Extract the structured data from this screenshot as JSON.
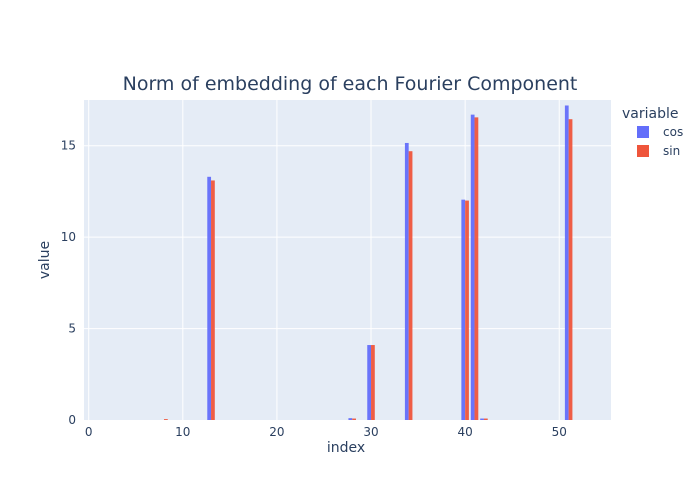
{
  "chart_data": {
    "type": "bar",
    "title": "Norm of embedding of each Fourier Component",
    "xlabel": "index",
    "ylabel": "value",
    "xlim": [
      -0.5,
      55.5
    ],
    "ylim": [
      0,
      17.5
    ],
    "xticks": [
      0,
      10,
      20,
      30,
      40,
      50
    ],
    "yticks": [
      0,
      5,
      10,
      15
    ],
    "grid": true,
    "legend": {
      "title": "variable",
      "placement": "right"
    },
    "barmode": "group",
    "series": [
      {
        "name": "cos",
        "color": "#636efa",
        "points": [
          [
            13,
            13.3
          ],
          [
            28,
            0.1
          ],
          [
            30,
            4.1
          ],
          [
            34,
            15.15
          ],
          [
            40,
            12.05
          ],
          [
            41,
            16.7
          ],
          [
            42,
            0.08
          ],
          [
            51,
            17.2
          ]
        ]
      },
      {
        "name": "sin",
        "color": "#ef553b",
        "points": [
          [
            8,
            0.05
          ],
          [
            13,
            13.1
          ],
          [
            28,
            0.08
          ],
          [
            30,
            4.1
          ],
          [
            34,
            14.7
          ],
          [
            40,
            12.0
          ],
          [
            41,
            16.55
          ],
          [
            42,
            0.08
          ],
          [
            51,
            16.45
          ]
        ]
      }
    ]
  },
  "colors": {
    "plot_bg": "#e5ecf6",
    "grid": "#ffffff",
    "text": "#2a3f5f"
  }
}
